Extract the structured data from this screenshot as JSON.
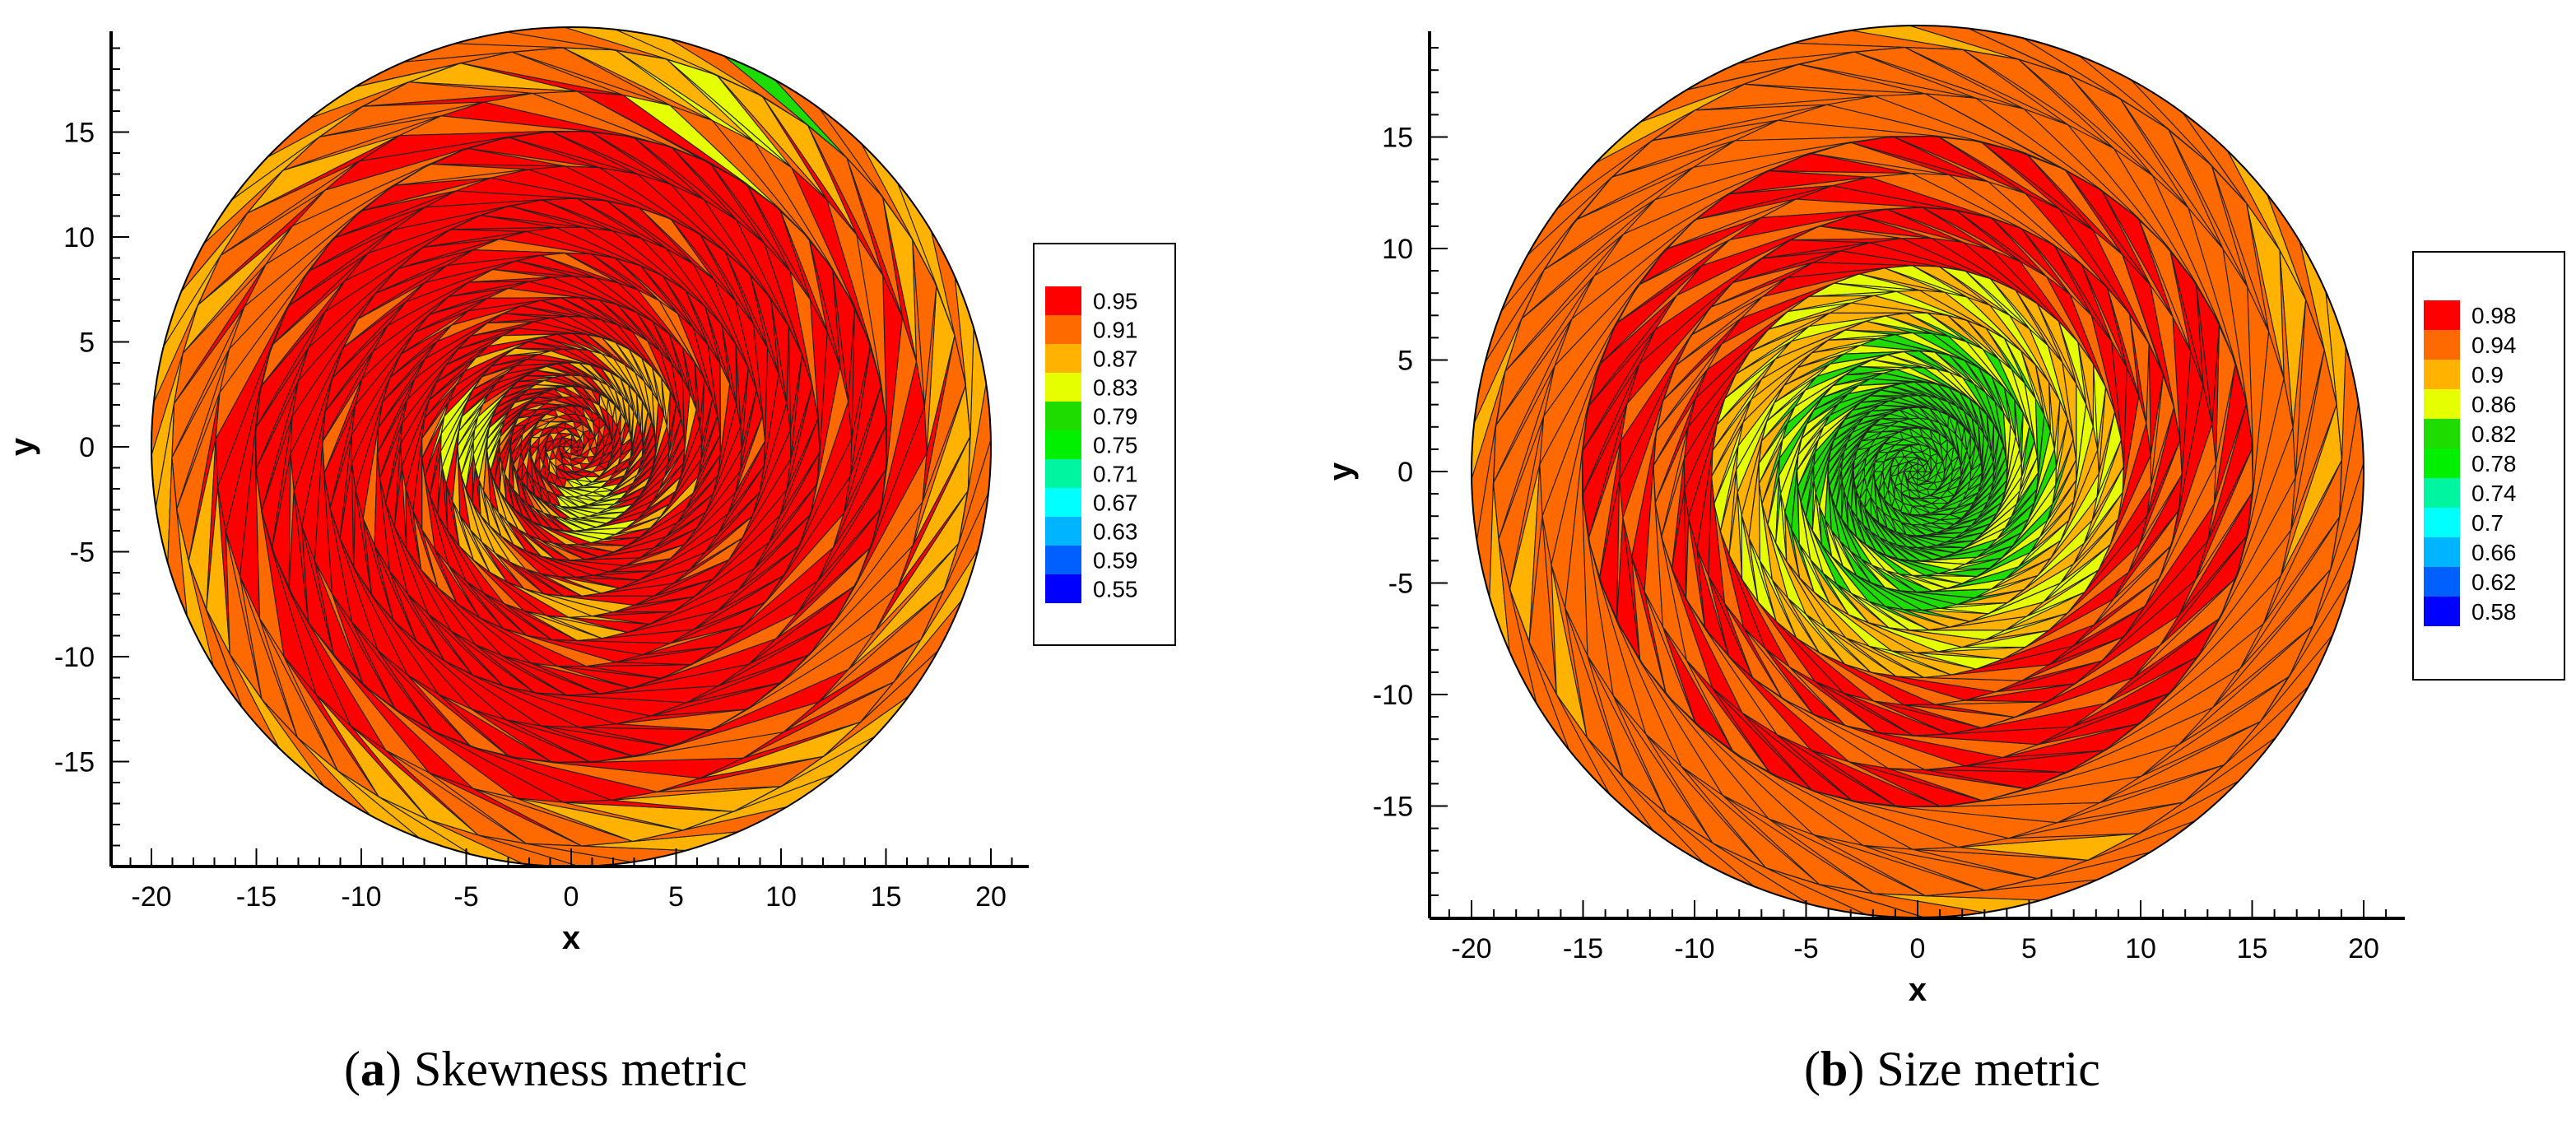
{
  "chart_data": [
    {
      "type": "heatmap",
      "subtype": "triangular-mesh-contour",
      "caption_label": "a",
      "caption_text": "Skewness metric",
      "xlabel": "x",
      "ylabel": "y",
      "xlim": [
        -22,
        22
      ],
      "ylim": [
        -20,
        20
      ],
      "xticks": [
        -20,
        -15,
        -10,
        -5,
        0,
        5,
        10,
        15,
        20
      ],
      "yticks": [
        -15,
        -10,
        -5,
        0,
        5,
        10,
        15
      ],
      "domain": {
        "shape": "circle",
        "center": [
          0,
          0
        ],
        "radius": 20
      },
      "legend": {
        "placement": "right",
        "levels": [
          "0.95",
          "0.91",
          "0.87",
          "0.83",
          "0.79",
          "0.75",
          "0.71",
          "0.67",
          "0.63",
          "0.59",
          "0.55"
        ],
        "colors": [
          "#ff0000",
          "#ff6a00",
          "#ffb300",
          "#e6ff00",
          "#1fdc00",
          "#00f000",
          "#00f5a0",
          "#00ffff",
          "#00b4ff",
          "#0060ff",
          "#0000ff"
        ]
      },
      "field": {
        "base_level": "0.95",
        "outer_level": "0.91",
        "rim_level": "0.87",
        "low_patches": [
          {
            "level": "0.83",
            "at": [
              6.5,
              16
            ]
          },
          {
            "level": "0.79",
            "at": [
              8,
              17.5
            ]
          },
          {
            "level": "0.83",
            "at": [
              -5,
              0.5
            ]
          },
          {
            "level": "0.83",
            "at": [
              1,
              -3
            ]
          },
          {
            "level": "0.87",
            "at": [
              3,
              2.5
            ]
          },
          {
            "level": "0.87",
            "at": [
              -4,
              -4
            ]
          },
          {
            "level": "0.87",
            "at": [
              0.5,
              -8
            ]
          }
        ]
      }
    },
    {
      "type": "heatmap",
      "subtype": "triangular-mesh-contour",
      "caption_label": "b",
      "caption_text": "Size metric",
      "xlabel": "x",
      "ylabel": "y",
      "xlim": [
        -22,
        22
      ],
      "ylim": [
        -20,
        20
      ],
      "xticks": [
        -20,
        -15,
        -10,
        -5,
        0,
        5,
        10,
        15,
        20
      ],
      "yticks": [
        -15,
        -10,
        -5,
        0,
        5,
        10,
        15
      ],
      "domain": {
        "shape": "circle",
        "center": [
          0,
          0
        ],
        "radius": 20
      },
      "legend": {
        "placement": "right",
        "levels": [
          "0.98",
          "0.94",
          "0.9",
          "0.86",
          "0.82",
          "0.78",
          "0.74",
          "0.7",
          "0.66",
          "0.62",
          "0.58"
        ],
        "colors": [
          "#ff0000",
          "#ff6a00",
          "#ffb300",
          "#e6ff00",
          "#1fdc00",
          "#00f000",
          "#00f5a0",
          "#00ffff",
          "#00b4ff",
          "#0060ff",
          "#0000ff"
        ]
      },
      "field": {
        "base_level": "0.94",
        "ring_level": "0.98",
        "ring_radius": [
          9,
          15
        ],
        "center_levels": [
          "0.82",
          "0.86",
          "0.9"
        ],
        "center_radius": 9
      }
    }
  ]
}
